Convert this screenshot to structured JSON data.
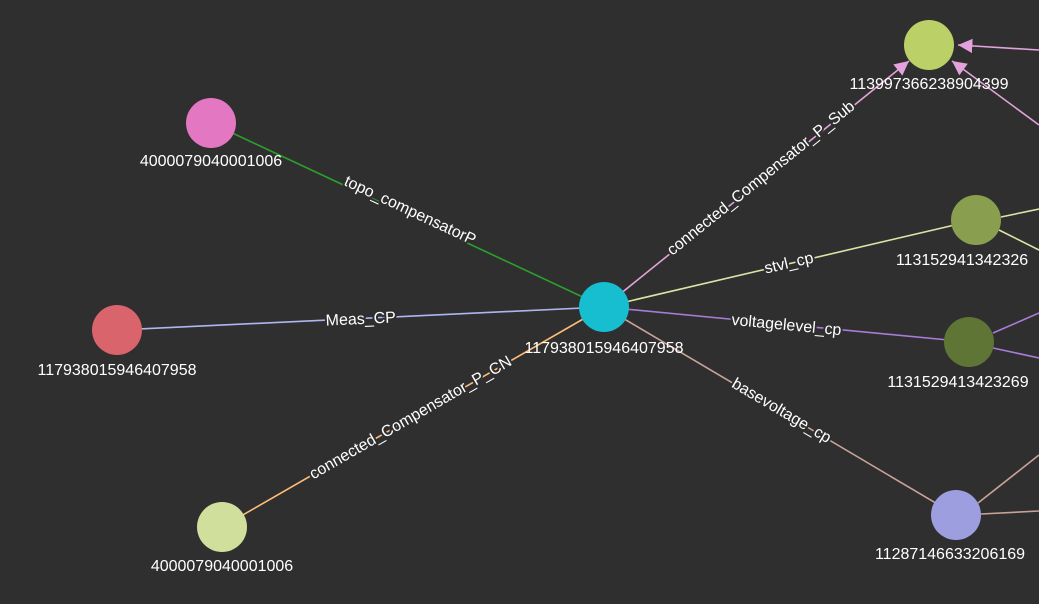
{
  "nodes": [
    {
      "id": "center",
      "label": "117938015946407958",
      "color": "#17bed0"
    },
    {
      "id": "pink-topo",
      "label": "4000079040001006",
      "color": "#e377c2"
    },
    {
      "id": "red-meas",
      "label": "117938015946407958",
      "color": "#d9646c"
    },
    {
      "id": "lightgreen-cn",
      "label": "4000079040001006",
      "color": "#d0df9c"
    },
    {
      "id": "green-sub",
      "label": "113997366238904399",
      "color": "#bbd167"
    },
    {
      "id": "olive-stvl",
      "label": "113152941342326",
      "color": "#8a9e50"
    },
    {
      "id": "darkolive-vl",
      "label": "1131529413423269",
      "color": "#5f7535"
    },
    {
      "id": "lavender-bv",
      "label": "11287146633206169",
      "color": "#9c9ee0"
    }
  ],
  "edges": [
    {
      "id": "e-topo",
      "label": "topo_compensatorP",
      "color": "#2ca02c"
    },
    {
      "id": "e-meas",
      "label": "Meas_CP",
      "color": "#aeb6f0"
    },
    {
      "id": "e-cn",
      "label": "connected_Compensator_P_CN",
      "color": "#ffbb78"
    },
    {
      "id": "e-sub",
      "label": "connected_Compensator_P_Sub",
      "color": "#e3a2dc"
    },
    {
      "id": "e-stvl",
      "label": "stvl_cp",
      "color": "#dbe3a6"
    },
    {
      "id": "e-vl",
      "label": "voltagelevel_cp",
      "color": "#a77cd6"
    },
    {
      "id": "e-bv",
      "label": "basevoltage_cp",
      "color": "#c9a39a"
    }
  ],
  "offscreen_edge_colors": {
    "to_green_sub_top": "#e3a2dc",
    "from_green_sub_right": "#e3a2dc",
    "olive_right_upper": "#dbe3a6",
    "olive_right_lower": "#dbe3a6",
    "darkolive_right_upper": "#a77cd6",
    "darkolive_right_lower": "#a77cd6",
    "lavender_right_upper": "#c9a39a",
    "lavender_right_lower": "#c9a39a"
  }
}
